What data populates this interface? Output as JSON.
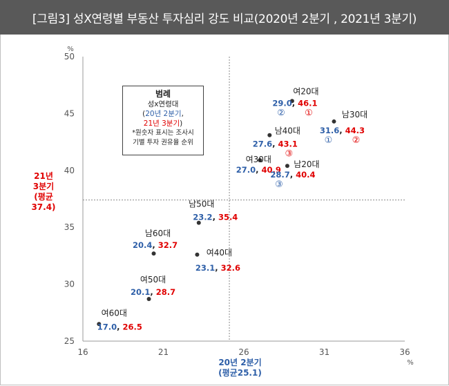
{
  "header": {
    "title": "[그림3] 성X연령별 부동산 투자심리 강도 비교(2020년 2분기 , 2021년 3분기)"
  },
  "chart_data": {
    "type": "scatter",
    "title": "[그림3] 성X연령별 부동산 투자심리 강도 비교(2020년 2분기 , 2021년 3분기)",
    "x_unit": "%",
    "y_unit": "%",
    "xlim": [
      16,
      36
    ],
    "ylim": [
      25,
      50
    ],
    "x_ticks": [
      16,
      21,
      26,
      31,
      36
    ],
    "y_ticks": [
      25,
      30,
      35,
      40,
      45,
      50
    ],
    "xlabel_lines": [
      "20년 2분기",
      "(평균25.1)"
    ],
    "ylabel_lines": [
      "21년",
      "3분기",
      "(평균",
      "37.4)"
    ],
    "x_mean": 25.1,
    "y_mean": 37.4,
    "grid": false,
    "legend": {
      "title": "범례",
      "line1": "성x연령대",
      "line2_blue": "20년 2분기",
      "line3_red": "21년 3분기",
      "note1": "*원숫자 표시는 조사시",
      "note2": "기별 투자 권유율 순위"
    },
    "points": [
      {
        "name": "여20대",
        "x": 29.0,
        "y": 46.1,
        "x_label": "29.0",
        "y_label": "46.1",
        "rank_x": "②",
        "rank_y": "①"
      },
      {
        "name": "남30대",
        "x": 31.6,
        "y": 44.3,
        "x_label": "31.6",
        "y_label": "44.3",
        "rank_x": "①",
        "rank_y": "②"
      },
      {
        "name": "남40대",
        "x": 27.6,
        "y": 43.1,
        "x_label": "27.6",
        "y_label": "43.1",
        "rank_x": "",
        "rank_y": "③"
      },
      {
        "name": "여30대",
        "x": 27.0,
        "y": 40.9,
        "x_label": "27.0",
        "y_label": "40.9",
        "rank_x": "",
        "rank_y": ""
      },
      {
        "name": "남20대",
        "x": 28.7,
        "y": 40.4,
        "x_label": "28.7",
        "y_label": "40.4",
        "rank_x": "③",
        "rank_y": ""
      },
      {
        "name": "남50대",
        "x": 23.2,
        "y": 35.4,
        "x_label": "23.2",
        "y_label": "35.4",
        "rank_x": "",
        "rank_y": ""
      },
      {
        "name": "남60대",
        "x": 20.4,
        "y": 32.7,
        "x_label": "20.4",
        "y_label": "32.7",
        "rank_x": "",
        "rank_y": ""
      },
      {
        "name": "여40대",
        "x": 23.1,
        "y": 32.6,
        "x_label": "23.1",
        "y_label": "32.6",
        "rank_x": "",
        "rank_y": ""
      },
      {
        "name": "여50대",
        "x": 20.1,
        "y": 28.7,
        "x_label": "20.1",
        "y_label": "28.7",
        "rank_x": "",
        "rank_y": ""
      },
      {
        "name": "여60대",
        "x": 17.0,
        "y": 26.5,
        "x_label": "17.0",
        "y_label": "26.5",
        "rank_x": "",
        "rank_y": ""
      }
    ],
    "colors": {
      "x_value": "#2e5fa8",
      "y_value": "#e00000",
      "point": "#333333"
    }
  }
}
